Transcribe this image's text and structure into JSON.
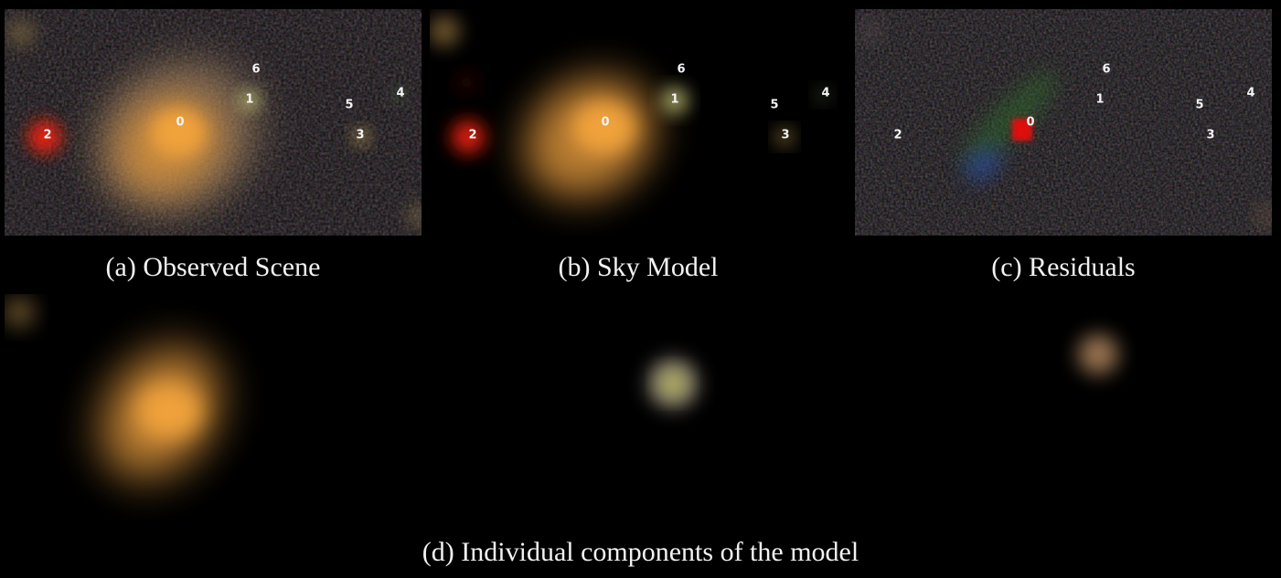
{
  "captions": {
    "a": "(a) Observed Scene",
    "b": "(b) Sky Model",
    "c": "(c) Residuals",
    "d": "(d) Individual components of the model"
  },
  "source_labels": [
    "0",
    "1",
    "2",
    "3",
    "4",
    "5",
    "6"
  ],
  "colors": {
    "galaxy_core": "#f0a23a",
    "galaxy_halo": "#c89a6a",
    "red_star": "#e82010",
    "yellow_green_source": "#c8c87a",
    "residual_blue": "#2a4a9a",
    "residual_green": "#2f6a2a",
    "label_text": "#f4f4f4"
  }
}
